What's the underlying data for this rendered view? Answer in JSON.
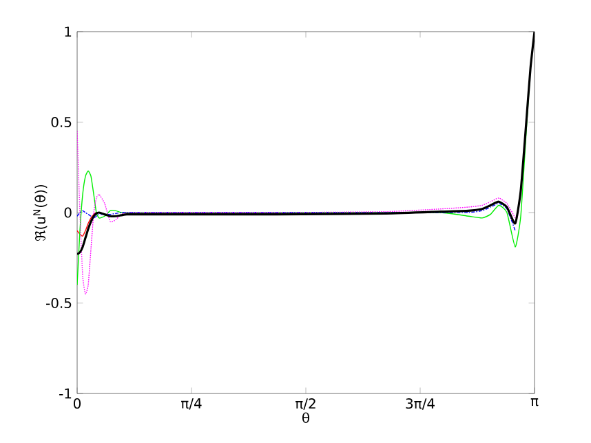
{
  "chart_data": {
    "type": "line",
    "xlabel": "θ",
    "ylabel": "ℜ(u$^{N}$(θ))",
    "x": [
      0,
      0.019,
      0.038,
      0.057,
      0.076,
      0.095,
      0.114,
      0.132,
      0.151,
      0.189,
      0.227,
      0.265,
      0.303,
      0.341,
      0.416,
      0.606,
      1.363,
      2.12,
      2.498,
      2.687,
      2.782,
      2.839,
      2.896,
      2.952,
      3.009,
      3.047,
      3.085,
      3.114,
      3.1416
    ],
    "series": [
      {
        "color": "#ff0000",
        "line_style": "solid",
        "values": [
          -0.1,
          -0.12,
          -0.13,
          -0.1,
          -0.06,
          -0.03,
          -0.01,
          0,
          0,
          null,
          null,
          null,
          null,
          null,
          null,
          null,
          null,
          null,
          null,
          null,
          null,
          null,
          null,
          null,
          null,
          null,
          null,
          null,
          null
        ]
      },
      {
        "color": "#00ee00",
        "line_style": "solid",
        "values": [
          -0.4,
          -0.1,
          0.1,
          0.2,
          0.23,
          0.2,
          0.1,
          0,
          -0.03,
          -0.02,
          0.01,
          0.01,
          0,
          0,
          0,
          0,
          0,
          0,
          0,
          -0.02,
          -0.03,
          -0.01,
          0.04,
          0,
          -0.19,
          -0.02,
          0.45,
          0.8,
          null
        ]
      },
      {
        "color": "#0000ff",
        "line_style": "dashed",
        "values": [
          -0.02,
          0,
          0.01,
          0,
          -0.01,
          -0.02,
          -0.03,
          -0.02,
          -0.01,
          -0.01,
          -0.01,
          -0.005,
          0,
          0,
          0,
          0,
          0,
          0,
          0,
          0,
          0.01,
          0.03,
          0.05,
          0.02,
          -0.1,
          null,
          null,
          null,
          null
        ]
      },
      {
        "color": "#ff00ff",
        "line_style": "dotted",
        "values": [
          0.45,
          0,
          -0.35,
          -0.45,
          -0.4,
          -0.2,
          0,
          0.08,
          0.1,
          0.05,
          -0.05,
          -0.04,
          -0.01,
          0,
          0,
          0,
          0,
          0.005,
          0.02,
          0.03,
          0.04,
          0.06,
          0.08,
          0.05,
          -0.03,
          null,
          null,
          null,
          null
        ]
      },
      {
        "color": "#000000",
        "line_style": "solid",
        "values": [
          -0.23,
          -0.22,
          -0.19,
          -0.14,
          -0.09,
          -0.05,
          -0.02,
          -0.005,
          0,
          -0.01,
          -0.02,
          -0.02,
          -0.015,
          -0.01,
          -0.01,
          -0.01,
          -0.01,
          -0.005,
          0.005,
          0.01,
          0.02,
          0.04,
          0.06,
          0.03,
          -0.06,
          0.12,
          0.5,
          0.8,
          1
        ]
      }
    ],
    "xlim": [
      0,
      3.1416
    ],
    "ylim": [
      -1,
      1
    ],
    "xticks": [
      0,
      {
        "value": 0.7854,
        "label": "π/4"
      },
      {
        "value": 1.5708,
        "label": "π/2"
      },
      {
        "value": 2.3562,
        "label": "3π/4"
      },
      {
        "value": 3.1416,
        "label": "π"
      }
    ],
    "yticks": [
      -1,
      -0.5,
      0,
      0.5,
      1
    ],
    "grid": false,
    "marker": "none"
  }
}
